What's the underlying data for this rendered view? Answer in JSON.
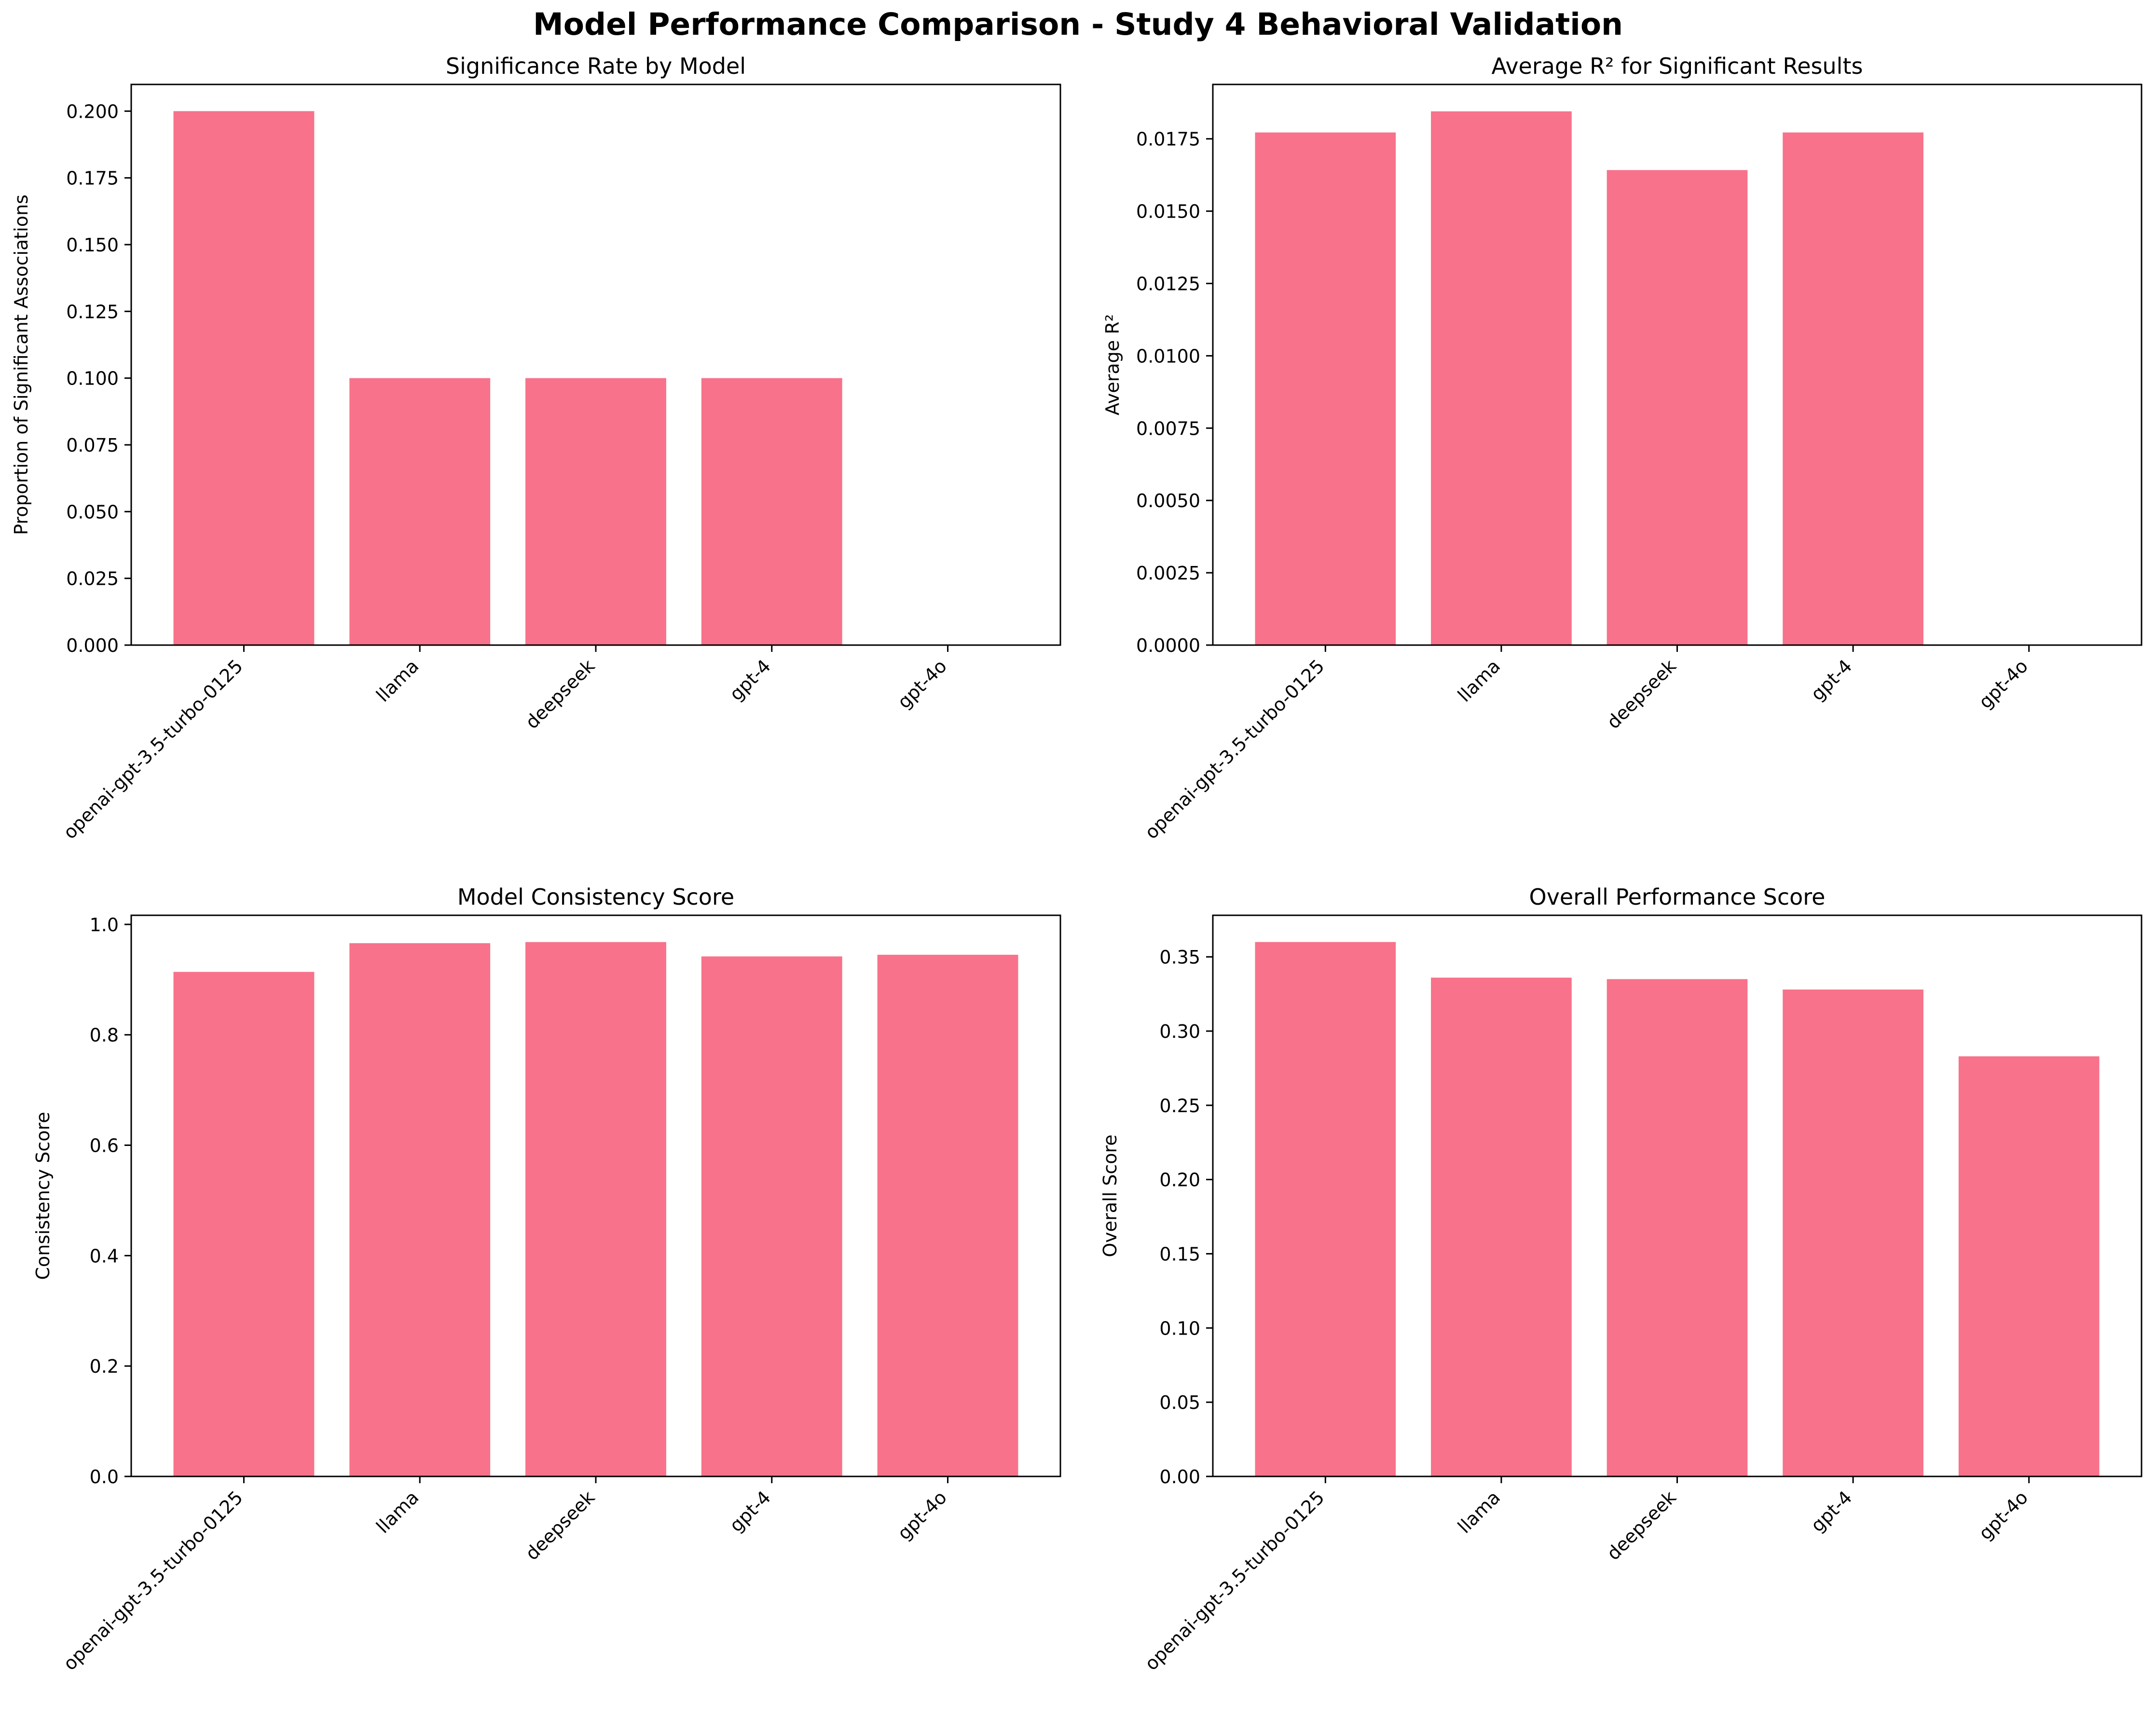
{
  "figure": {
    "title": "Model Performance Comparison - Study 4 Behavioral Validation"
  },
  "colors": {
    "bar": "#f7728a",
    "axis": "#000000"
  },
  "chart_data": [
    {
      "type": "bar",
      "title": "Significance Rate by Model",
      "xlabel": "",
      "ylabel": "Proportion of Significant Associations",
      "categories": [
        "openai-gpt-3.5-turbo-0125",
        "llama",
        "deepseek",
        "gpt-4",
        "gpt-4o"
      ],
      "values": [
        0.2,
        0.1,
        0.1,
        0.1,
        0.0
      ],
      "ylim": [
        0,
        0.21
      ],
      "yticks": [
        "0.000",
        "0.025",
        "0.050",
        "0.075",
        "0.100",
        "0.125",
        "0.150",
        "0.175",
        "0.200"
      ],
      "grid": false
    },
    {
      "type": "bar",
      "title": "Average R² for Significant Results",
      "xlabel": "",
      "ylabel": "Average R²",
      "categories": [
        "openai-gpt-3.5-turbo-0125",
        "llama",
        "deepseek",
        "gpt-4",
        "gpt-4o"
      ],
      "values": [
        0.01772,
        0.01845,
        0.01642,
        0.01772,
        0.0
      ],
      "ylim": [
        0,
        0.01938
      ],
      "yticks": [
        "0.0000",
        "0.0025",
        "0.0050",
        "0.0075",
        "0.0100",
        "0.0125",
        "0.0150",
        "0.0175"
      ],
      "grid": false
    },
    {
      "type": "bar",
      "title": "Model Consistency Score",
      "xlabel": "",
      "ylabel": "Consistency Score",
      "categories": [
        "openai-gpt-3.5-turbo-0125",
        "llama",
        "deepseek",
        "gpt-4",
        "gpt-4o"
      ],
      "values": [
        0.914,
        0.966,
        0.968,
        0.942,
        0.945
      ],
      "ylim": [
        0,
        1.0165
      ],
      "yticks": [
        "0.0",
        "0.2",
        "0.4",
        "0.6",
        "0.8",
        "1.0"
      ],
      "grid": false
    },
    {
      "type": "bar",
      "title": "Overall Performance Score",
      "xlabel": "",
      "ylabel": "Overall Score",
      "categories": [
        "openai-gpt-3.5-turbo-0125",
        "llama",
        "deepseek",
        "gpt-4",
        "gpt-4o"
      ],
      "values": [
        0.36,
        0.336,
        0.335,
        0.328,
        0.283
      ],
      "ylim": [
        0,
        0.378
      ],
      "yticks": [
        "0.00",
        "0.05",
        "0.10",
        "0.15",
        "0.20",
        "0.25",
        "0.30",
        "0.35"
      ],
      "grid": false
    }
  ]
}
